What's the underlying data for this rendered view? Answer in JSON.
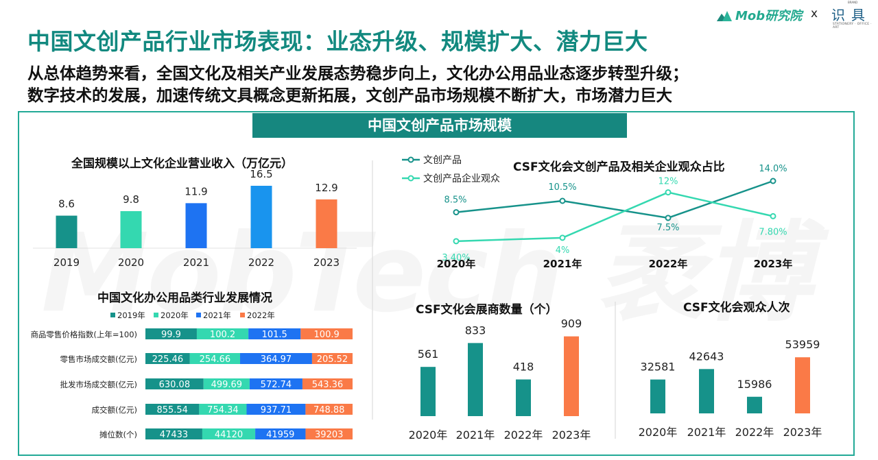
{
  "header": {
    "title": "中国文创产品行业市场表现：业态升级、规模扩大、潜力巨大",
    "subtitle_line1": "从总体趋势来看，全国文化及相关产业发展态势稳步向上，文化办公用品业态逐步转型升级；",
    "subtitle_line2": "数字技术的发展，加速传统文具概念更新拓展，文创产品市场规模不断扩大，市场潜力巨大"
  },
  "logo": {
    "mob_text": "Mob研究院",
    "x_text": "x",
    "brand_text": "识具",
    "brand_tagline": "STATIONERY · OFFICE · ART",
    "brand_small": "BRAND"
  },
  "panel": {
    "banner": "中国文创产品市场规模",
    "watermark": "MobTech 袤博"
  },
  "colors": {
    "teal_dark": "#16928a",
    "teal_light": "#34d8b0",
    "blue": "#1e73f2",
    "sky": "#1994ee",
    "orange": "#fa7a47",
    "frame": "#21a996"
  },
  "chart_data": [
    {
      "type": "bar",
      "title": "全国规模以上文化企业营业收入（万亿元）",
      "categories": [
        "2019",
        "2020",
        "2021",
        "2022",
        "2023"
      ],
      "values": [
        8.6,
        9.8,
        11.9,
        16.5,
        12.9
      ],
      "labels": [
        "8.6",
        "9.8",
        "11.9",
        "16.5",
        "12.9"
      ],
      "colors": [
        "#16928a",
        "#34d8b0",
        "#1e73f2",
        "#1994ee",
        "#fa7a47"
      ],
      "ylim": [
        0,
        18
      ]
    },
    {
      "type": "line",
      "title": "CSF文化会文创产品及相关企业观众占比",
      "categories": [
        "2020年",
        "2021年",
        "2022年",
        "2023年"
      ],
      "series": [
        {
          "name": "文创产品",
          "color": "#16928a",
          "values": [
            8.5,
            10.5,
            7.5,
            14.0
          ],
          "labels": [
            "8.5%",
            "10.5%",
            "7.5%",
            "14.0%"
          ]
        },
        {
          "name": "文创产品企业观众",
          "color": "#34d8b0",
          "values": [
            3.4,
            4.0,
            12.0,
            7.8
          ],
          "labels": [
            "3.40%",
            "4%",
            "12%",
            "7.80%"
          ]
        }
      ],
      "ylim": [
        0,
        16
      ]
    },
    {
      "type": "bar",
      "orientation": "horizontal-stacked",
      "title": "中国文化办公用品类行业发展情况",
      "categories": [
        "商品零售价格指数(上年=100)",
        "零售市场成交额(亿元)",
        "批发市场成交额(亿元)",
        "成交额(亿元)",
        "摊位数(个)"
      ],
      "series": [
        {
          "name": "2019年",
          "color": "#16928a",
          "values": [
            99.9,
            225.46,
            630.08,
            855.54,
            47433
          ],
          "labels": [
            "99.9",
            "225.46",
            "630.08",
            "855.54",
            "47433"
          ]
        },
        {
          "name": "2020年",
          "color": "#34d8b0",
          "values": [
            100.2,
            254.66,
            499.69,
            754.34,
            44120
          ],
          "labels": [
            "100.2",
            "254.66",
            "499.69",
            "754.34",
            "44120"
          ]
        },
        {
          "name": "2021年",
          "color": "#1e73f2",
          "values": [
            101.5,
            364.97,
            572.74,
            937.71,
            41959
          ],
          "labels": [
            "101.5",
            "364.97",
            "572.74",
            "937.71",
            "41959"
          ]
        },
        {
          "name": "2022年",
          "color": "#fa7a47",
          "values": [
            100.9,
            205.52,
            543.36,
            748.88,
            39203
          ],
          "labels": [
            "100.9",
            "205.52",
            "543.36",
            "748.88",
            "39203"
          ]
        }
      ],
      "note": "each row normalized to 100%"
    },
    {
      "type": "bar",
      "title": "CSF文化会展商数量（个）",
      "categories": [
        "2020年",
        "2021年",
        "2022年",
        "2023年"
      ],
      "values": [
        561,
        833,
        418,
        909
      ],
      "labels": [
        "561",
        "833",
        "418",
        "909"
      ],
      "colors": [
        "#16928a",
        "#16928a",
        "#16928a",
        "#fa7a47"
      ],
      "ylim": [
        0,
        1000
      ]
    },
    {
      "type": "bar",
      "title": "CSF文化会观众人次",
      "categories": [
        "2020年",
        "2021年",
        "2022年",
        "2023年"
      ],
      "values": [
        32581,
        42643,
        15986,
        53959
      ],
      "labels": [
        "32581",
        "42643",
        "15986",
        "53959"
      ],
      "colors": [
        "#16928a",
        "#16928a",
        "#16928a",
        "#fa7a47"
      ],
      "ylim": [
        0,
        60000
      ]
    }
  ]
}
